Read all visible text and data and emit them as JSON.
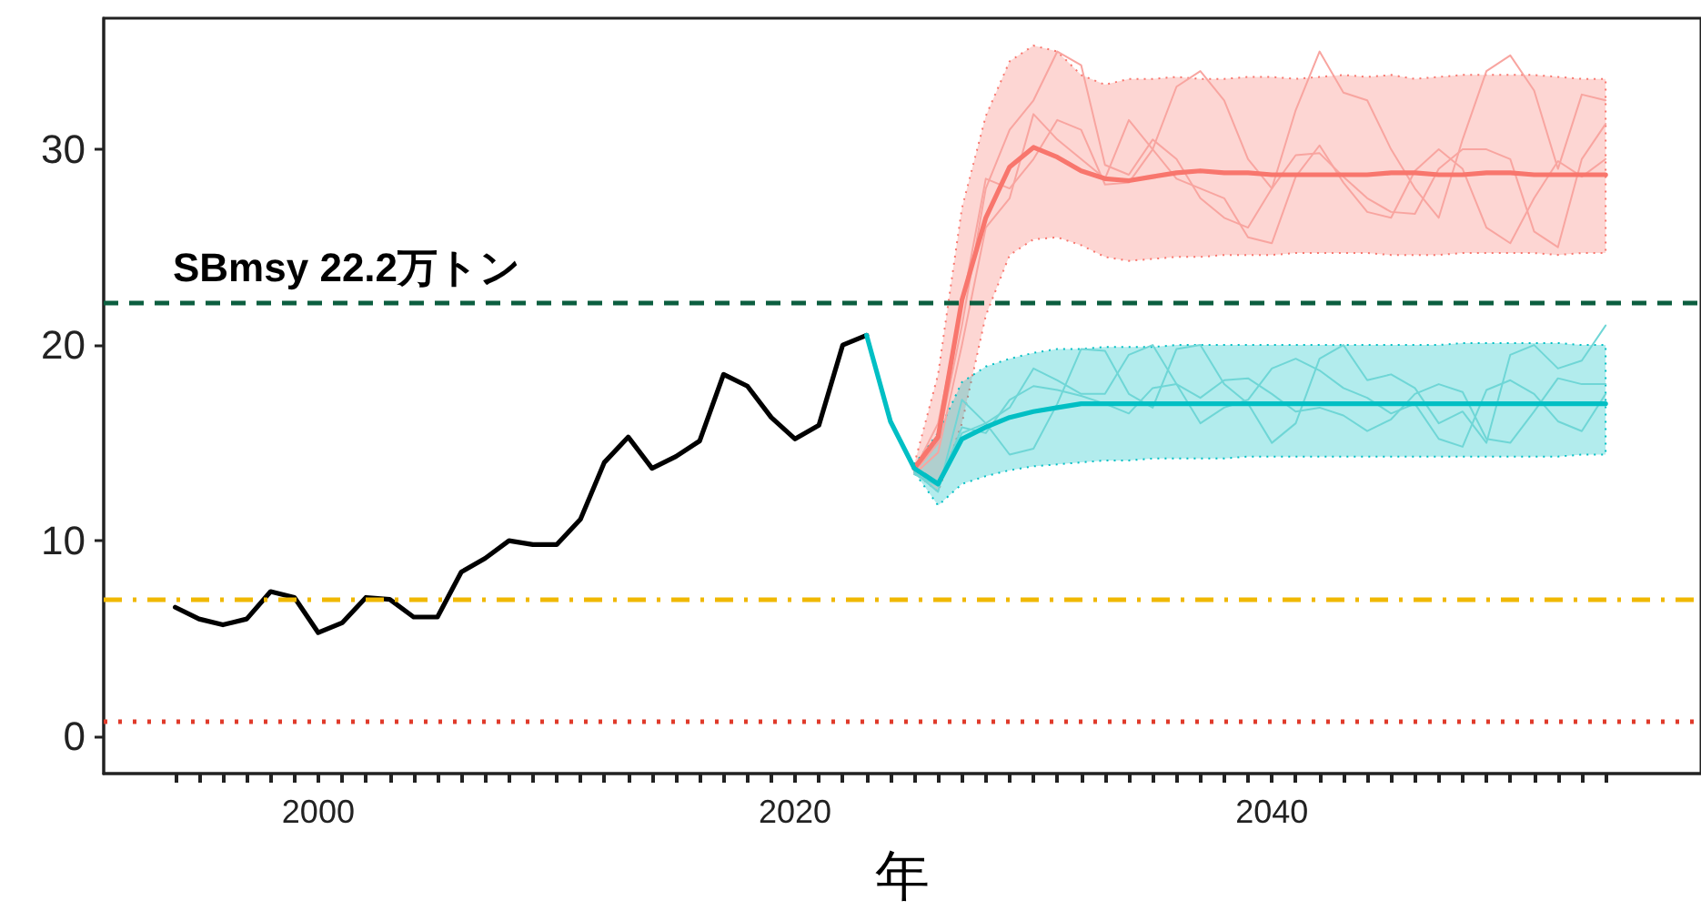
{
  "chart_data": {
    "type": "line",
    "xlabel": "年",
    "xlim": [
      1991,
      2058
    ],
    "xticks": [
      {
        "value": 1994,
        "label": null
      },
      {
        "value": 1995,
        "label": null
      },
      {
        "value": 1996,
        "label": null
      },
      {
        "value": 1997,
        "label": null
      },
      {
        "value": 1998,
        "label": null
      },
      {
        "value": 1999,
        "label": null
      },
      2000,
      {
        "value": 2001,
        "label": null
      },
      {
        "value": 2002,
        "label": null
      },
      {
        "value": 2003,
        "label": null
      },
      {
        "value": 2004,
        "label": null
      },
      {
        "value": 2005,
        "label": null
      },
      {
        "value": 2006,
        "label": null
      },
      {
        "value": 2007,
        "label": null
      },
      {
        "value": 2008,
        "label": null
      },
      {
        "value": 2009,
        "label": null
      },
      {
        "value": 2010,
        "label": null
      },
      {
        "value": 2011,
        "label": null
      },
      {
        "value": 2012,
        "label": null
      },
      {
        "value": 2013,
        "label": null
      },
      {
        "value": 2014,
        "label": null
      },
      {
        "value": 2015,
        "label": null
      },
      {
        "value": 2016,
        "label": null
      },
      {
        "value": 2017,
        "label": null
      },
      {
        "value": 2018,
        "label": null
      },
      {
        "value": 2019,
        "label": null
      },
      2020,
      {
        "value": 2021,
        "label": null
      },
      {
        "value": 2022,
        "label": null
      },
      {
        "value": 2023,
        "label": null
      },
      {
        "value": 2024,
        "label": null
      },
      {
        "value": 2025,
        "label": null
      },
      {
        "value": 2026,
        "label": null
      },
      {
        "value": 2027,
        "label": null
      },
      {
        "value": 2028,
        "label": null
      },
      {
        "value": 2029,
        "label": null
      },
      {
        "value": 2030,
        "label": null
      },
      {
        "value": 2031,
        "label": null
      },
      {
        "value": 2032,
        "label": null
      },
      {
        "value": 2033,
        "label": null
      },
      {
        "value": 2034,
        "label": null
      },
      {
        "value": 2035,
        "label": null
      },
      {
        "value": 2036,
        "label": null
      },
      {
        "value": 2037,
        "label": null
      },
      {
        "value": 2038,
        "label": null
      },
      {
        "value": 2039,
        "label": null
      },
      2040,
      {
        "value": 2041,
        "label": null
      },
      {
        "value": 2042,
        "label": null
      },
      {
        "value": 2043,
        "label": null
      },
      {
        "value": 2044,
        "label": null
      },
      {
        "value": 2045,
        "label": null
      },
      {
        "value": 2046,
        "label": null
      },
      {
        "value": 2047,
        "label": null
      },
      {
        "value": 2048,
        "label": null
      },
      {
        "value": 2049,
        "label": null
      },
      {
        "value": 2050,
        "label": null
      },
      {
        "value": 2051,
        "label": null
      },
      {
        "value": 2052,
        "label": null
      },
      {
        "value": 2053,
        "label": null
      },
      {
        "value": 2054,
        "label": null
      }
    ],
    "ylim": [
      -1.9,
      36.7
    ],
    "yticks": [
      0,
      10,
      20,
      30
    ],
    "marker": "none",
    "line_style": "solid",
    "ref_lines": [
      {
        "axis": "y",
        "value": 22.2,
        "label": "SBmsy 22.2万トン",
        "color": "#0b5e3f",
        "line_style": "dashed"
      },
      {
        "axis": "y",
        "value": 7.0,
        "label": null,
        "color": "#f0b800",
        "line_style": "dashdot"
      },
      {
        "axis": "y",
        "value": 0.8,
        "label": null,
        "color": "#e03a2a",
        "line_style": "dotted"
      }
    ],
    "series": [
      {
        "color": "#000000",
        "x": [
          1994,
          1995,
          1996,
          1997,
          1998,
          1999,
          2000,
          2001,
          2002,
          2003,
          2004,
          2005,
          2006,
          2007,
          2008,
          2009,
          2010,
          2011,
          2012,
          2013,
          2014,
          2015,
          2016,
          2017,
          2018,
          2019,
          2020,
          2021,
          2022,
          2023
        ],
        "values": [
          6.6,
          6.0,
          5.7,
          6.0,
          7.4,
          7.1,
          5.3,
          5.8,
          7.1,
          7.0,
          6.1,
          6.1,
          8.4,
          9.1,
          10.0,
          9.8,
          9.8,
          11.1,
          14.0,
          15.3,
          13.7,
          14.3,
          15.1,
          18.5,
          17.9,
          16.3,
          15.2,
          15.9,
          20.0,
          20.5
        ]
      },
      {
        "color": "#f8a5a0",
        "x": [
          2025,
          2026,
          2027,
          2028,
          2029,
          2030,
          2031,
          2032,
          2033,
          2034,
          2035,
          2036,
          2037,
          2038,
          2039,
          2040,
          2041,
          2042,
          2043,
          2044,
          2045,
          2046,
          2047,
          2048,
          2049,
          2050,
          2051,
          2052,
          2053,
          2054
        ],
        "values": [
          13.5,
          15,
          21,
          28,
          31,
          32.5,
          35,
          34.3,
          29.2,
          28.7,
          30.5,
          29.5,
          27.5,
          26.5,
          26,
          28,
          29.7,
          29.8,
          28.6,
          27.5,
          26.8,
          26.7,
          29,
          30,
          30,
          29.5,
          25.8,
          25,
          29.5,
          31.3
        ]
      },
      {
        "color": "#f8a5a0",
        "x": [
          2025,
          2026,
          2027,
          2028,
          2029,
          2030,
          2031,
          2032,
          2033,
          2034,
          2035,
          2036,
          2037,
          2038,
          2039,
          2040,
          2041,
          2042,
          2043,
          2044,
          2045,
          2046,
          2047,
          2048,
          2049,
          2050,
          2051,
          2052,
          2053,
          2054
        ],
        "values": [
          13.6,
          16,
          22,
          28.5,
          28,
          29.5,
          31.5,
          31,
          28.2,
          28.3,
          30,
          33.2,
          34,
          32.5,
          29.5,
          28,
          32,
          35,
          32.9,
          32.5,
          30,
          28,
          26.5,
          30.5,
          34,
          34.8,
          33,
          29,
          32.8,
          32.5
        ]
      },
      {
        "color": "#f8a5a0",
        "x": [
          2025,
          2026,
          2027,
          2028,
          2029,
          2030,
          2031,
          2032,
          2033,
          2034,
          2035,
          2036,
          2037,
          2038,
          2039,
          2040,
          2041,
          2042,
          2043,
          2044,
          2045,
          2046,
          2047,
          2048,
          2049,
          2050,
          2051,
          2052,
          2053,
          2054
        ],
        "values": [
          13.4,
          14.5,
          20,
          26,
          27.5,
          31.8,
          30.5,
          29.5,
          28.5,
          31.5,
          30,
          28.5,
          28,
          27.5,
          25.5,
          25.2,
          28.6,
          30.2,
          28.3,
          26.8,
          26.5,
          28.9,
          30,
          29,
          26,
          25.2,
          27.5,
          29.4,
          28.6,
          29.5
        ]
      },
      {
        "color": "#6fd6d6",
        "x": [
          2025,
          2026,
          2027,
          2028,
          2029,
          2030,
          2031,
          2032,
          2033,
          2034,
          2035,
          2036,
          2037,
          2038,
          2039,
          2040,
          2041,
          2042,
          2043,
          2044,
          2045,
          2046,
          2047,
          2048,
          2049,
          2050,
          2051,
          2052,
          2053,
          2054
        ],
        "values": [
          13.5,
          12.5,
          17.2,
          16,
          14.4,
          14.7,
          17,
          19.8,
          19.7,
          17.5,
          16.8,
          19.8,
          20,
          18,
          17,
          15,
          16,
          19.3,
          20,
          18.2,
          18.5,
          17.8,
          16,
          16.6,
          15,
          19.5,
          20,
          18.8,
          19.2,
          21
        ]
      },
      {
        "color": "#6fd6d6",
        "x": [
          2025,
          2026,
          2027,
          2028,
          2029,
          2030,
          2031,
          2032,
          2033,
          2034,
          2035,
          2036,
          2037,
          2038,
          2039,
          2040,
          2041,
          2042,
          2043,
          2044,
          2045,
          2046,
          2047,
          2048,
          2049,
          2050,
          2051,
          2052,
          2053,
          2054
        ],
        "values": [
          13.6,
          13,
          15.5,
          16,
          16.8,
          18.8,
          18.2,
          17.5,
          17.5,
          19.5,
          20,
          18,
          16,
          16.8,
          17.2,
          18.8,
          19.3,
          18.7,
          17.8,
          17.3,
          16.5,
          17,
          15.2,
          14.8,
          17.7,
          18.2,
          17.5,
          16.1,
          15.6,
          17.5
        ]
      },
      {
        "color": "#6fd6d6",
        "x": [
          2025,
          2026,
          2027,
          2028,
          2029,
          2030,
          2031,
          2032,
          2033,
          2034,
          2035,
          2036,
          2037,
          2038,
          2039,
          2040,
          2041,
          2042,
          2043,
          2044,
          2045,
          2046,
          2047,
          2048,
          2049,
          2050,
          2051,
          2052,
          2053,
          2054
        ],
        "values": [
          13.4,
          12.8,
          15.8,
          15.5,
          17.2,
          17.9,
          17.7,
          17.4,
          17,
          16.5,
          17.8,
          18,
          17.3,
          18.2,
          18.3,
          17.5,
          16.6,
          16.8,
          16.4,
          15.6,
          16.2,
          17.5,
          18,
          17.6,
          15.2,
          15,
          16.6,
          18.3,
          18,
          18
        ]
      },
      {
        "color": "#f8766d",
        "x": [
          2025,
          2026,
          2027,
          2028,
          2029,
          2030,
          2031,
          2032,
          2033,
          2034,
          2035,
          2036,
          2037,
          2038,
          2039,
          2040,
          2041,
          2042,
          2043,
          2044,
          2045,
          2046,
          2047,
          2048,
          2049,
          2050,
          2051,
          2052,
          2053,
          2054
        ],
        "values": [
          13.7,
          15.3,
          22.3,
          26.5,
          29.1,
          30.1,
          29.6,
          28.9,
          28.5,
          28.4,
          28.6,
          28.8,
          28.9,
          28.8,
          28.8,
          28.7,
          28.7,
          28.7,
          28.7,
          28.7,
          28.8,
          28.8,
          28.7,
          28.7,
          28.8,
          28.8,
          28.7,
          28.7,
          28.7,
          28.7
        ],
        "lower": [
          13.5,
          12.5,
          16,
          21.5,
          24.6,
          25.4,
          25.5,
          25.1,
          24.5,
          24.3,
          24.4,
          24.5,
          24.5,
          24.6,
          24.6,
          24.6,
          24.7,
          24.7,
          24.7,
          24.7,
          24.6,
          24.6,
          24.6,
          24.7,
          24.7,
          24.7,
          24.7,
          24.6,
          24.7,
          24.7
        ],
        "upper": [
          13.9,
          18.5,
          27,
          31.7,
          34.5,
          35.3,
          35,
          33.8,
          33.3,
          33.6,
          33.6,
          33.7,
          33.6,
          33.6,
          33.7,
          33.7,
          33.6,
          33.7,
          33.8,
          33.7,
          33.8,
          33.6,
          33.7,
          33.8,
          33.8,
          33.8,
          33.8,
          33.7,
          33.6,
          33.6
        ]
      },
      {
        "color": "#00bfc4",
        "x": [
          2023,
          2024,
          2025,
          2026,
          2027,
          2028,
          2029,
          2030,
          2031,
          2032,
          2033,
          2034,
          2035,
          2036,
          2037,
          2038,
          2039,
          2040,
          2041,
          2042,
          2043,
          2044,
          2045,
          2046,
          2047,
          2048,
          2049,
          2050,
          2051,
          2052,
          2053,
          2054
        ],
        "values": [
          20.5,
          16.1,
          13.7,
          12.9,
          15.2,
          15.8,
          16.3,
          16.6,
          16.8,
          17.0,
          17.0,
          17.0,
          17.0,
          17.0,
          17.0,
          17.0,
          17.0,
          17.0,
          17.0,
          17.0,
          17.0,
          17.0,
          17.0,
          17.0,
          17.0,
          17.0,
          17.0,
          17.0,
          17.0,
          17.0,
          17.0,
          17.0
        ],
        "lower": [
          null,
          null,
          13.5,
          11.8,
          12.9,
          13.3,
          13.6,
          13.8,
          13.9,
          14.0,
          14.1,
          14.1,
          14.2,
          14.2,
          14.2,
          14.2,
          14.3,
          14.3,
          14.3,
          14.3,
          14.3,
          14.3,
          14.3,
          14.3,
          14.3,
          14.3,
          14.3,
          14.3,
          14.3,
          14.3,
          14.4,
          14.4
        ],
        "upper": [
          null,
          null,
          13.9,
          15.5,
          18.1,
          18.9,
          19.3,
          19.6,
          19.8,
          19.8,
          19.9,
          19.9,
          19.9,
          20.0,
          20.0,
          20.0,
          20.0,
          20.0,
          20.0,
          20.0,
          20.0,
          20.0,
          20.0,
          20.0,
          20.0,
          20.1,
          20.1,
          20.1,
          20.1,
          20.1,
          20.0,
          20.0
        ]
      }
    ]
  }
}
